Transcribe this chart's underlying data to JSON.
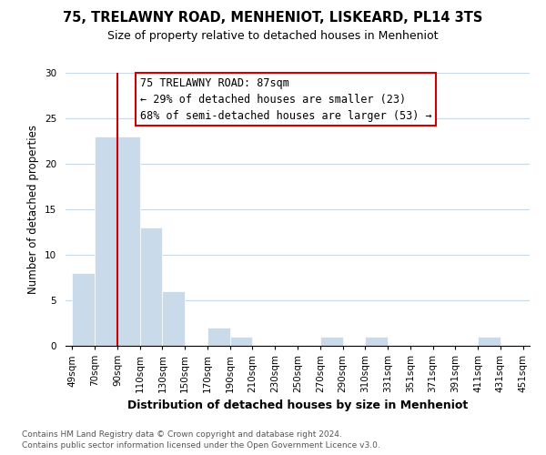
{
  "title1": "75, TRELAWNY ROAD, MENHENIOT, LISKEARD, PL14 3TS",
  "title2": "Size of property relative to detached houses in Menheniot",
  "xlabel": "Distribution of detached houses by size in Menheniot",
  "ylabel": "Number of detached properties",
  "bin_labels": [
    "49sqm",
    "70sqm",
    "90sqm",
    "110sqm",
    "130sqm",
    "150sqm",
    "170sqm",
    "190sqm",
    "210sqm",
    "230sqm",
    "250sqm",
    "270sqm",
    "290sqm",
    "310sqm",
    "331sqm",
    "351sqm",
    "371sqm",
    "391sqm",
    "411sqm",
    "431sqm",
    "451sqm"
  ],
  "bin_values": [
    8,
    23,
    23,
    13,
    6,
    0,
    2,
    1,
    0,
    0,
    0,
    1,
    0,
    1,
    0,
    0,
    0,
    0,
    1,
    0
  ],
  "bar_color": "#c9daea",
  "highlight_color": "#cc0000",
  "annotation_line1": "75 TRELAWNY ROAD: 87sqm",
  "annotation_line2": "← 29% of detached houses are smaller (23)",
  "annotation_line3": "68% of semi-detached houses are larger (53) →",
  "ylim": [
    0,
    30
  ],
  "yticks": [
    0,
    5,
    10,
    15,
    20,
    25,
    30
  ],
  "footnote1": "Contains HM Land Registry data © Crown copyright and database right 2024.",
  "footnote2": "Contains public sector information licensed under the Open Government Licence v3.0.",
  "title1_fontsize": 10.5,
  "title2_fontsize": 9,
  "ylabel_fontsize": 8.5,
  "xlabel_fontsize": 9,
  "tick_fontsize": 7.5,
  "annot_fontsize": 8.5,
  "footnote_fontsize": 6.5
}
